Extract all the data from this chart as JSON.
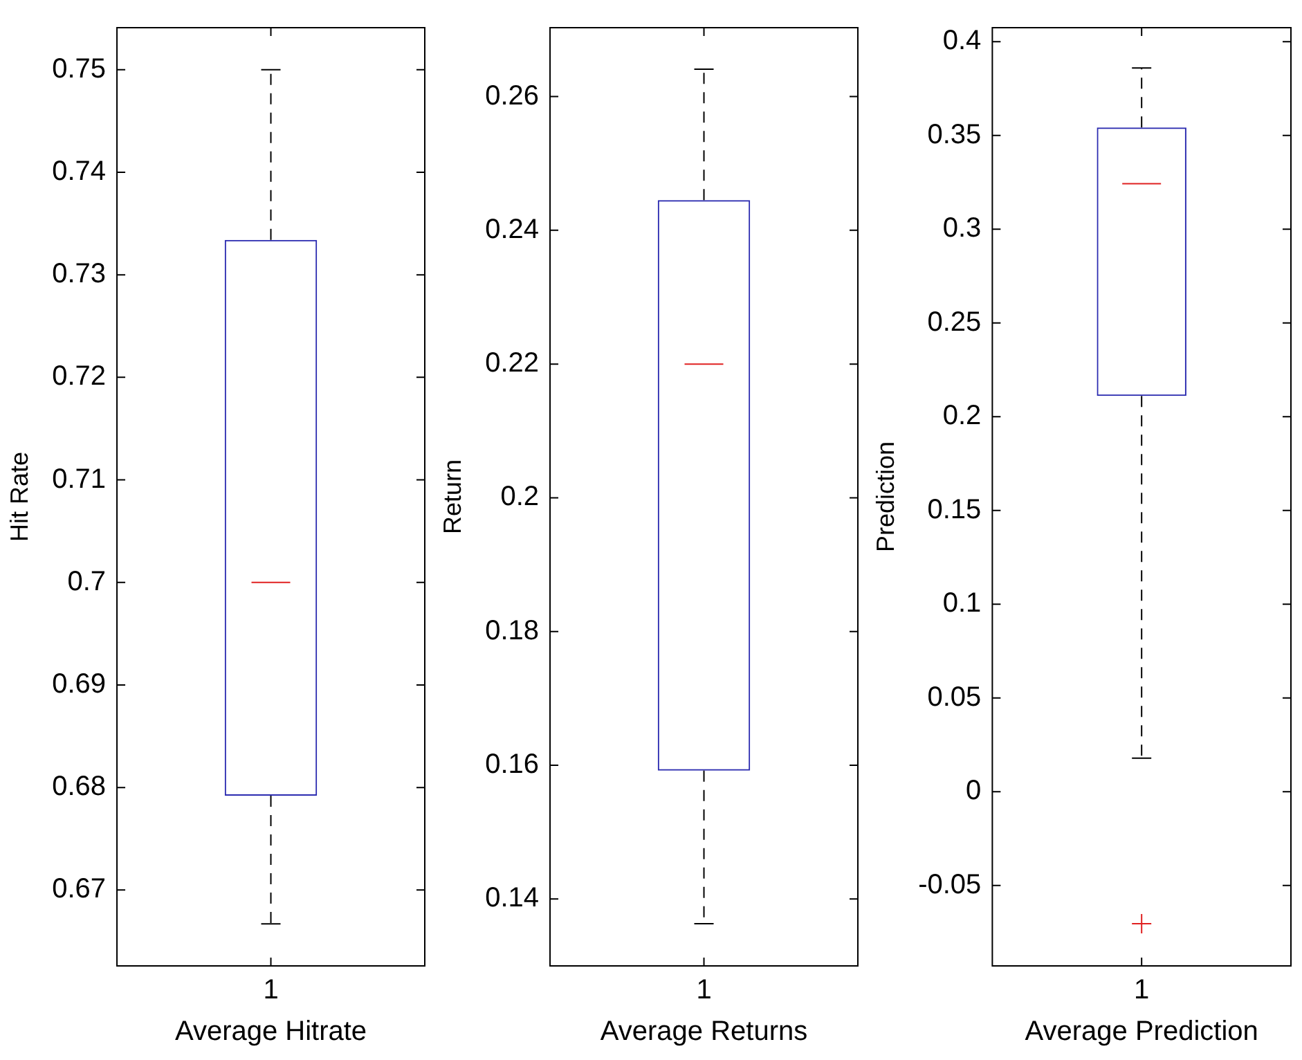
{
  "chart_data": [
    {
      "type": "box",
      "categories": [
        "1"
      ],
      "xlabel": "Average Hitrate",
      "ylabel": "Hit Rate",
      "ylim": [
        0.6626,
        0.7541
      ],
      "yticks": [
        0.67,
        0.68,
        0.69,
        0.7,
        0.71,
        0.72,
        0.73,
        0.74,
        0.75
      ],
      "grid": false,
      "boxes": [
        {
          "low": 0.6667,
          "q1": 0.6792,
          "median": 0.7,
          "q3": 0.7334,
          "high": 0.75
        }
      ]
    },
    {
      "type": "box",
      "categories": [
        "1"
      ],
      "xlabel": "Average Returns",
      "ylabel": "Return",
      "ylim": [
        0.13,
        0.2703
      ],
      "yticks": [
        0.14,
        0.16,
        0.18,
        0.2,
        0.22,
        0.24,
        0.26
      ],
      "grid": false,
      "boxes": [
        {
          "low": 0.1363,
          "q1": 0.1592,
          "median": 0.22,
          "q3": 0.2445,
          "high": 0.2641
        }
      ]
    },
    {
      "type": "box",
      "categories": [
        "1"
      ],
      "xlabel": "Average Prediction",
      "ylabel": "Prediction",
      "ylim": [
        -0.0929,
        0.4075
      ],
      "yticks": [
        -0.05,
        0,
        0.05,
        0.1,
        0.15,
        0.2,
        0.25,
        0.3,
        0.35,
        0.4
      ],
      "grid": false,
      "boxes": [
        {
          "low": 0.0179,
          "q1": 0.2111,
          "median": 0.3243,
          "q3": 0.3543,
          "high": 0.386,
          "outliers": [
            -0.0704
          ]
        }
      ]
    }
  ]
}
